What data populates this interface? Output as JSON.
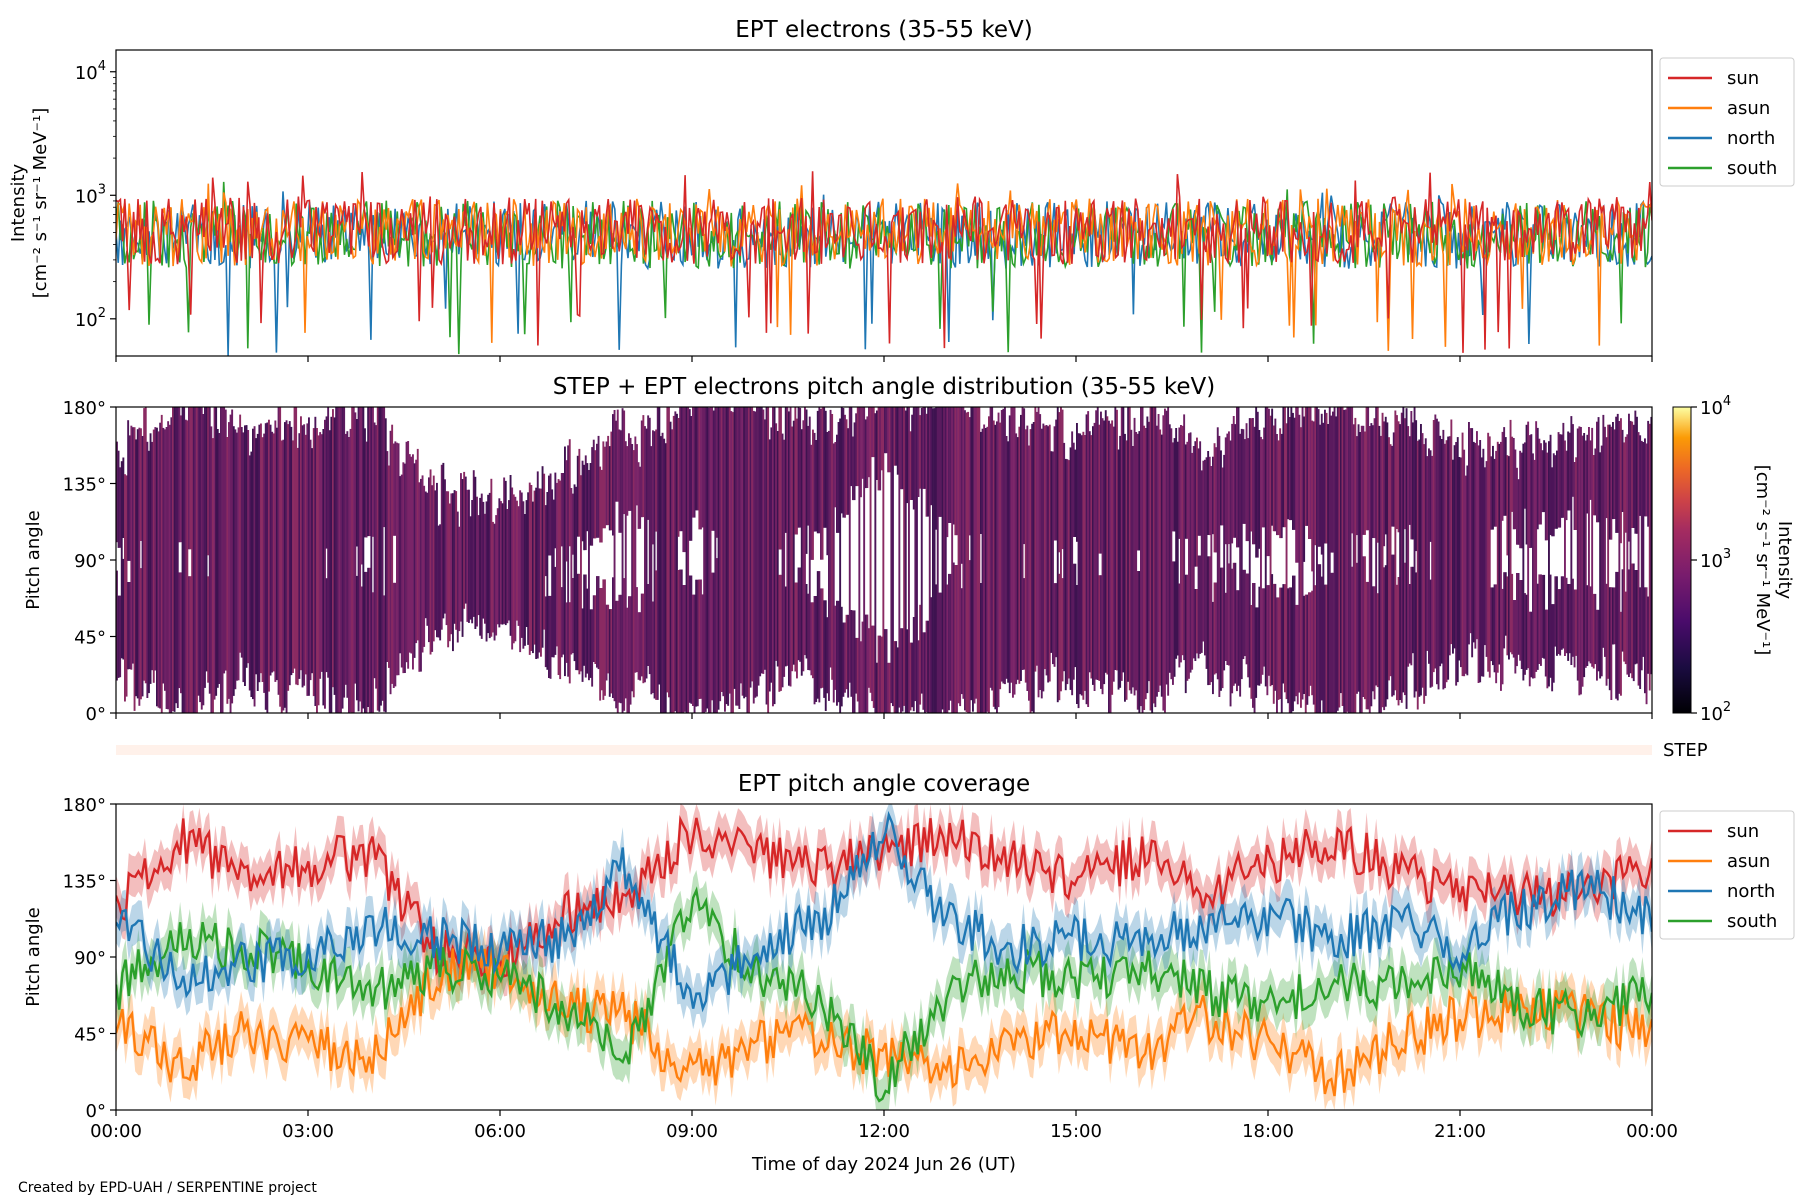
{
  "figure": {
    "credit": "Created by EPD-UAH / SERPENTINE project",
    "xlabel": "Time of day 2024 Jun 26 (UT)",
    "xticks": [
      "00:00",
      "03:00",
      "06:00",
      "09:00",
      "12:00",
      "15:00",
      "18:00",
      "21:00",
      "00:00"
    ]
  },
  "panels": {
    "intensity": {
      "title": "EPT electrons (35-55 keV)",
      "ylabel_1": "Intensity",
      "ylabel_2": "[cm⁻² s⁻¹ sr⁻¹ MeV⁻¹]",
      "yticks": [
        {
          "base": "10",
          "exp": "4",
          "value": 10000
        },
        {
          "base": "10",
          "exp": "3",
          "value": 1000
        },
        {
          "base": "10",
          "exp": "2",
          "value": 100
        }
      ]
    },
    "pad": {
      "title": "STEP + EPT electrons pitch angle distribution (35-55 keV)",
      "ylabel": "Pitch angle",
      "yticks": [
        "180°",
        "135°",
        "90°",
        "45°",
        "0°"
      ],
      "colorbar_label_1": "Intensity",
      "colorbar_label_2": "[cm⁻² s⁻¹ sr⁻¹ MeV⁻¹]",
      "colorbar_ticks": [
        {
          "base": "10",
          "exp": "4"
        },
        {
          "base": "10",
          "exp": "3"
        },
        {
          "base": "10",
          "exp": "2"
        }
      ]
    },
    "step": {
      "label": "STEP"
    },
    "coverage": {
      "title": "EPT pitch angle coverage",
      "ylabel": "Pitch angle",
      "yticks": [
        "180°",
        "135°",
        "90°",
        "45°",
        "0°"
      ]
    }
  },
  "colors": {
    "sun": "#d62728",
    "asun": "#ff7f0e",
    "north": "#1f77b4",
    "south": "#2ca02c"
  },
  "chart_data": [
    {
      "type": "line",
      "title": "EPT electrons (35-55 keV)",
      "xlabel": "Time of day 2024 Jun 26 (UT)",
      "ylabel": "Intensity [cm⁻² s⁻¹ sr⁻¹ MeV⁻¹]",
      "x_range_hours": [
        0,
        24
      ],
      "ylim": [
        50,
        15000
      ],
      "yscale": "log",
      "legend": "right",
      "series": [
        {
          "name": "sun",
          "mean": 520,
          "min": 50,
          "max": 1600
        },
        {
          "name": "asun",
          "mean": 500,
          "min": 50,
          "max": 1300
        },
        {
          "name": "north",
          "mean": 480,
          "min": 50,
          "max": 1250
        },
        {
          "name": "south",
          "mean": 480,
          "min": 50,
          "max": 1400
        }
      ]
    },
    {
      "type": "heatmap",
      "title": "STEP + EPT electrons pitch angle distribution (35-55 keV)",
      "ylabel": "Pitch angle",
      "ylim": [
        0,
        180
      ],
      "colorbar": {
        "scale": "log",
        "range": [
          100,
          10000
        ],
        "cmap": "inferno"
      },
      "typical_intensity": 500
    },
    {
      "type": "line",
      "title": "EPT pitch angle coverage",
      "xlabel": "Time of day 2024 Jun 26 (UT)",
      "ylabel": "Pitch angle",
      "ylim": [
        0,
        180
      ],
      "legend": "right",
      "series": [
        {
          "name": "sun",
          "hours": [
            0,
            1,
            2,
            3,
            4,
            5,
            6,
            7,
            8,
            9,
            10,
            11,
            12,
            13,
            14,
            15,
            16,
            17,
            18,
            19,
            20,
            21,
            22,
            23,
            24
          ],
          "values": [
            120,
            160,
            140,
            145,
            150,
            95,
            90,
            115,
            125,
            165,
            150,
            140,
            155,
            160,
            150,
            135,
            150,
            130,
            145,
            160,
            140,
            130,
            125,
            130,
            140
          ]
        },
        {
          "name": "asun",
          "hours": [
            0,
            1,
            2,
            3,
            4,
            5,
            6,
            7,
            8,
            9,
            10,
            11,
            12,
            13,
            14,
            15,
            16,
            17,
            18,
            19,
            20,
            21,
            22,
            23,
            24
          ],
          "values": [
            55,
            25,
            45,
            40,
            30,
            80,
            85,
            60,
            55,
            20,
            40,
            45,
            30,
            25,
            35,
            50,
            30,
            55,
            40,
            20,
            40,
            55,
            60,
            55,
            45
          ]
        },
        {
          "name": "north",
          "hours": [
            0,
            1,
            2,
            3,
            4,
            5,
            6,
            7,
            8,
            9,
            10,
            11,
            12,
            13,
            14,
            15,
            16,
            17,
            18,
            19,
            20,
            21,
            22,
            23,
            24
          ],
          "values": [
            110,
            80,
            85,
            90,
            110,
            100,
            95,
            100,
            145,
            60,
            95,
            110,
            165,
            110,
            95,
            100,
            95,
            110,
            115,
            100,
            110,
            95,
            120,
            130,
            115
          ]
        },
        {
          "name": "south",
          "hours": [
            0,
            1,
            2,
            3,
            4,
            5,
            6,
            7,
            8,
            9,
            10,
            11,
            12,
            13,
            14,
            15,
            16,
            17,
            18,
            19,
            20,
            21,
            22,
            23,
            24
          ],
          "values": [
            70,
            100,
            95,
            85,
            70,
            85,
            80,
            60,
            35,
            120,
            80,
            65,
            15,
            70,
            85,
            75,
            85,
            70,
            60,
            75,
            70,
            85,
            60,
            55,
            70
          ]
        }
      ]
    }
  ]
}
